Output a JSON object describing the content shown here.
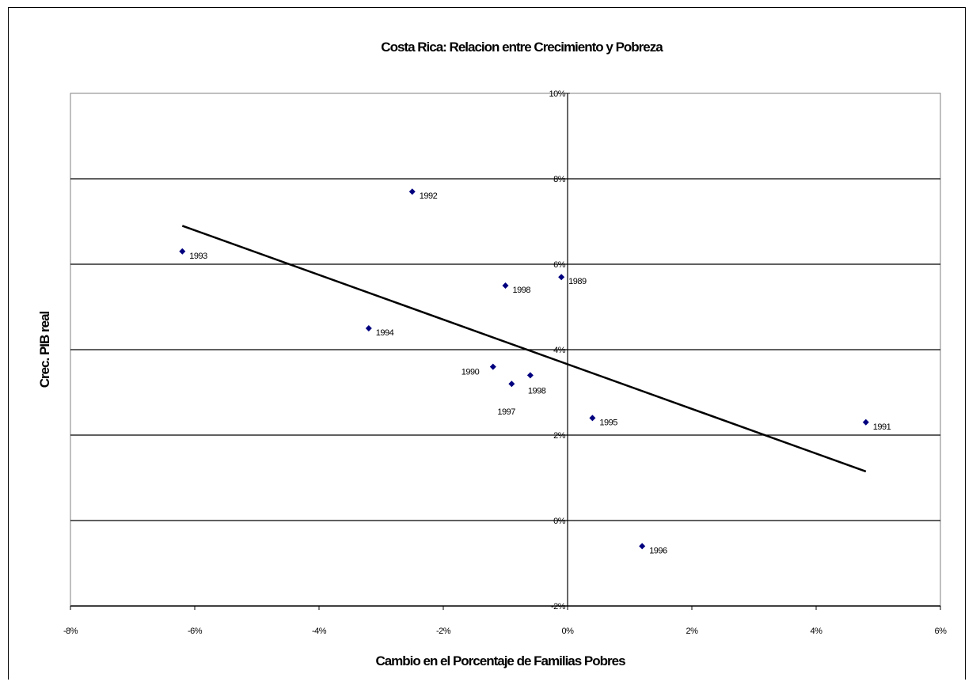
{
  "chart_data": {
    "type": "scatter",
    "title": "Costa Rica: Relacion entre Crecimiento y Pobreza",
    "xlabel": "Cambio en el Porcentaje de Familias Pobres",
    "ylabel": "Crec. PIB real",
    "xlim": [
      -0.08,
      0.06
    ],
    "ylim": [
      -0.02,
      0.1
    ],
    "x_ticks": [
      "-8%",
      "-6%",
      "-4%",
      "-2%",
      "0%",
      "2%",
      "4%",
      "6%"
    ],
    "x_tick_values": [
      -0.08,
      -0.06,
      -0.04,
      -0.02,
      0.0,
      0.02,
      0.04,
      0.06
    ],
    "y_ticks": [
      "-2%",
      "0%",
      "2%",
      "4%",
      "6%",
      "8%",
      "10%"
    ],
    "y_tick_values": [
      -0.02,
      0.0,
      0.02,
      0.04,
      0.06,
      0.08,
      0.1
    ],
    "grid": "horizontal",
    "marker_color": "#00007f",
    "points": [
      {
        "label": "1989",
        "x": -0.001,
        "y": 0.057
      },
      {
        "label": "1990",
        "x": -0.012,
        "y": 0.036
      },
      {
        "label": "1991",
        "x": 0.048,
        "y": 0.023
      },
      {
        "label": "1992",
        "x": -0.025,
        "y": 0.077
      },
      {
        "label": "1993",
        "x": -0.062,
        "y": 0.063
      },
      {
        "label": "1994",
        "x": -0.032,
        "y": 0.045
      },
      {
        "label": "1995",
        "x": 0.004,
        "y": 0.024
      },
      {
        "label": "1996",
        "x": 0.012,
        "y": -0.006
      },
      {
        "label": "1997",
        "x": -0.009,
        "y": 0.032
      },
      {
        "label": "1998",
        "x": -0.006,
        "y": 0.034
      },
      {
        "label": "1998",
        "x": -0.01,
        "y": 0.055
      }
    ],
    "trendline": {
      "x": [
        -0.062,
        0.048
      ],
      "y": [
        0.069,
        0.0115
      ]
    }
  }
}
